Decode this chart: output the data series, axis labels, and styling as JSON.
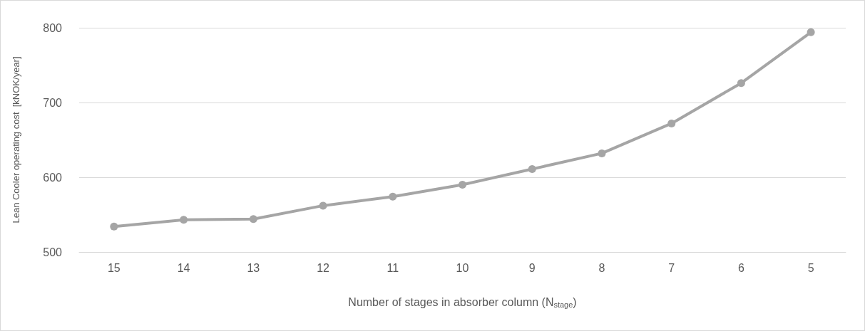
{
  "chart_data": {
    "type": "line",
    "xlabel": "Number of stages in absorber column (N$_{stage}$)",
    "ylabel": "Lean Cooler operating cost  [kNOK/year]",
    "categories": [
      "15",
      "14",
      "13",
      "12",
      "11",
      "10",
      "9",
      "8",
      "7",
      "6",
      "5"
    ],
    "series": [
      {
        "color": "#a5a5a5",
        "values": [
          534,
          543,
          544,
          562,
          574,
          590,
          611,
          632,
          672,
          726,
          794
        ]
      }
    ],
    "ylim": [
      500,
      800
    ],
    "yticks": [
      500,
      600,
      700,
      800
    ],
    "grid": "y",
    "marker": "circle",
    "line_style": "solid"
  }
}
